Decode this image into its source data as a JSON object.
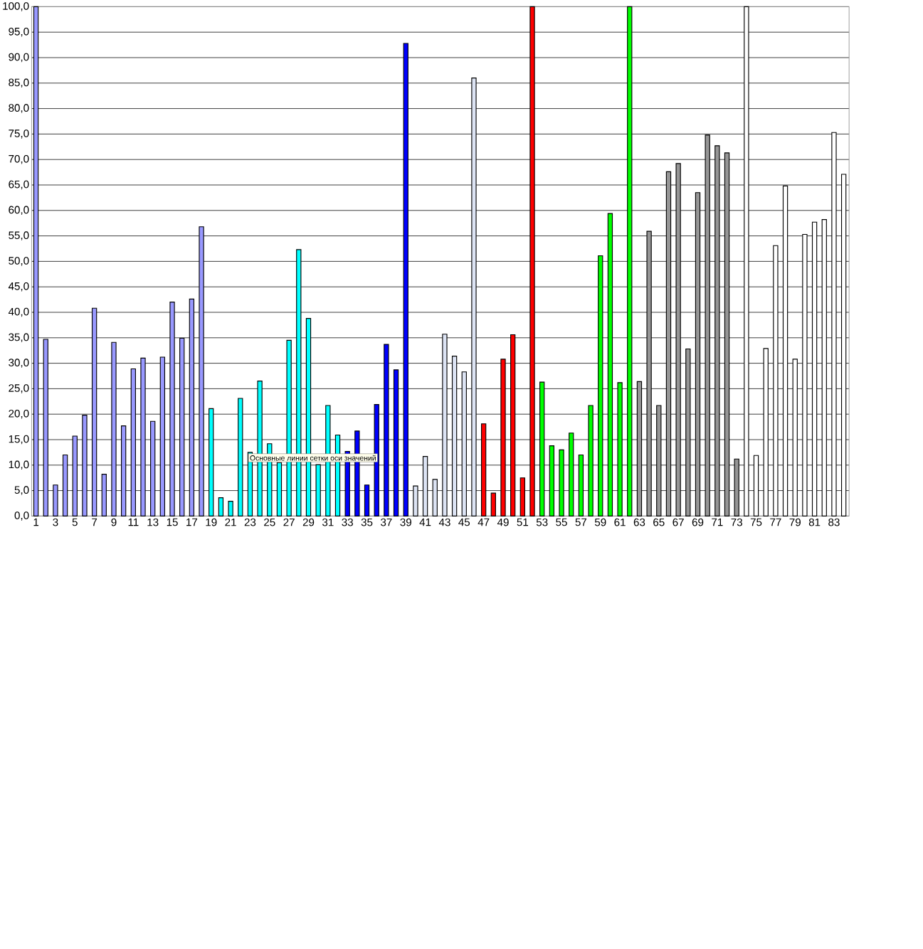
{
  "chart_data": {
    "type": "bar",
    "categories": [
      "1",
      null,
      "3",
      null,
      "5",
      null,
      "7",
      null,
      "9",
      null,
      "11",
      null,
      "13",
      null,
      "15",
      null,
      "17",
      null,
      "19",
      null,
      "21",
      null,
      "23",
      null,
      "25",
      null,
      "27",
      null,
      "29",
      null,
      "31",
      null,
      "33",
      null,
      "35",
      null,
      "37",
      null,
      "39",
      null,
      "41",
      null,
      "43",
      null,
      "45",
      null,
      "47",
      null,
      "49",
      null,
      "51",
      null,
      "53",
      null,
      "55",
      null,
      "57",
      null,
      "59",
      null,
      "61",
      null,
      "63",
      null,
      "65",
      null,
      "67",
      null,
      "69",
      null,
      "71",
      null,
      "73",
      null,
      "75",
      null,
      "77",
      null,
      "79",
      null,
      "81",
      null,
      "83",
      null
    ],
    "values": [
      100,
      34.7,
      6.1,
      12.0,
      15.7,
      19.8,
      40.8,
      8.2,
      34.1,
      17.7,
      28.9,
      31.0,
      18.6,
      31.2,
      42.0,
      34.9,
      42.6,
      56.8,
      21.1,
      3.6,
      2.9,
      23.1,
      12.5,
      26.5,
      14.2,
      10.5,
      34.5,
      52.3,
      38.8,
      10.1,
      21.7,
      15.9,
      12.7,
      16.7,
      6.1,
      21.9,
      33.7,
      28.7,
      92.8,
      5.9,
      11.7,
      7.2,
      35.7,
      31.4,
      28.3,
      86.0,
      18.1,
      4.5,
      30.8,
      35.6,
      7.5,
      100,
      26.3,
      13.8,
      13.0,
      16.3,
      12.0,
      21.7,
      51.1,
      59.4,
      26.2,
      100,
      26.4,
      55.9,
      21.7,
      67.6,
      69.2,
      32.8,
      63.5,
      74.8,
      72.7,
      71.3,
      11.2,
      100,
      11.9,
      32.9,
      53.1,
      64.8,
      30.8,
      55.3,
      57.7,
      58.2,
      75.3,
      67.1
    ],
    "colors": [
      "#9999ff",
      "#9999ff",
      "#9999ff",
      "#9999ff",
      "#9999ff",
      "#9999ff",
      "#9999ff",
      "#9999ff",
      "#9999ff",
      "#9999ff",
      "#9999ff",
      "#9999ff",
      "#9999ff",
      "#9999ff",
      "#9999ff",
      "#9999ff",
      "#9999ff",
      "#9999ff",
      "#00ffff",
      "#00ffff",
      "#00ffff",
      "#00ffff",
      "#00ffff",
      "#00ffff",
      "#00ffff",
      "#00ffff",
      "#00ffff",
      "#00ffff",
      "#00ffff",
      "#00ffff",
      "#00ffff",
      "#00ffff",
      "#0000ff",
      "#0000ff",
      "#0000ff",
      "#0000ff",
      "#0000ff",
      "#0000ff",
      "#0000ff",
      "#dde4f4",
      "#dde4f4",
      "#dde4f4",
      "#dde4f4",
      "#dde4f4",
      "#dde4f4",
      "#dde4f4",
      "#ff0000",
      "#ff0000",
      "#ff0000",
      "#ff0000",
      "#ff0000",
      "#ff0000",
      "#00ff00",
      "#00ff00",
      "#00ff00",
      "#00ff00",
      "#00ff00",
      "#00ff00",
      "#00ff00",
      "#00ff00",
      "#00ff00",
      "#00ff00",
      "#969696",
      "#969696",
      "#969696",
      "#969696",
      "#969696",
      "#969696",
      "#969696",
      "#969696",
      "#969696",
      "#969696",
      "#969696",
      "#ffffff",
      "#ffffff",
      "#ffffff",
      "#ffffff",
      "#ffffff",
      "#ffffff",
      "#ffffff",
      "#ffffff",
      "#ffffff",
      "#ffffff",
      "#ffffff"
    ],
    "ylim": [
      0,
      100
    ],
    "yticks": [
      {
        "value": 0,
        "label": "0,0"
      },
      {
        "value": 5,
        "label": "5,0"
      },
      {
        "value": 10,
        "label": "10,0"
      },
      {
        "value": 15,
        "label": "15,0"
      },
      {
        "value": 20,
        "label": "20,0"
      },
      {
        "value": 25,
        "label": "25,0"
      },
      {
        "value": 30,
        "label": "30,0"
      },
      {
        "value": 35,
        "label": "35,0"
      },
      {
        "value": 40,
        "label": "40,0"
      },
      {
        "value": 45,
        "label": "45,0"
      },
      {
        "value": 50,
        "label": "50,0"
      },
      {
        "value": 55,
        "label": "55,0"
      },
      {
        "value": 60,
        "label": "60,0"
      },
      {
        "value": 65,
        "label": "65,0"
      },
      {
        "value": 70,
        "label": "70,0"
      },
      {
        "value": 75,
        "label": "75,0"
      },
      {
        "value": 80,
        "label": "80,0"
      },
      {
        "value": 85,
        "label": "85,0"
      },
      {
        "value": 90,
        "label": "90,0"
      },
      {
        "value": 95,
        "label": "95,0"
      },
      {
        "value": 100,
        "label": "100,0"
      }
    ],
    "grid": "y",
    "annotations": [
      "Основные линии сетки оси значений"
    ]
  }
}
